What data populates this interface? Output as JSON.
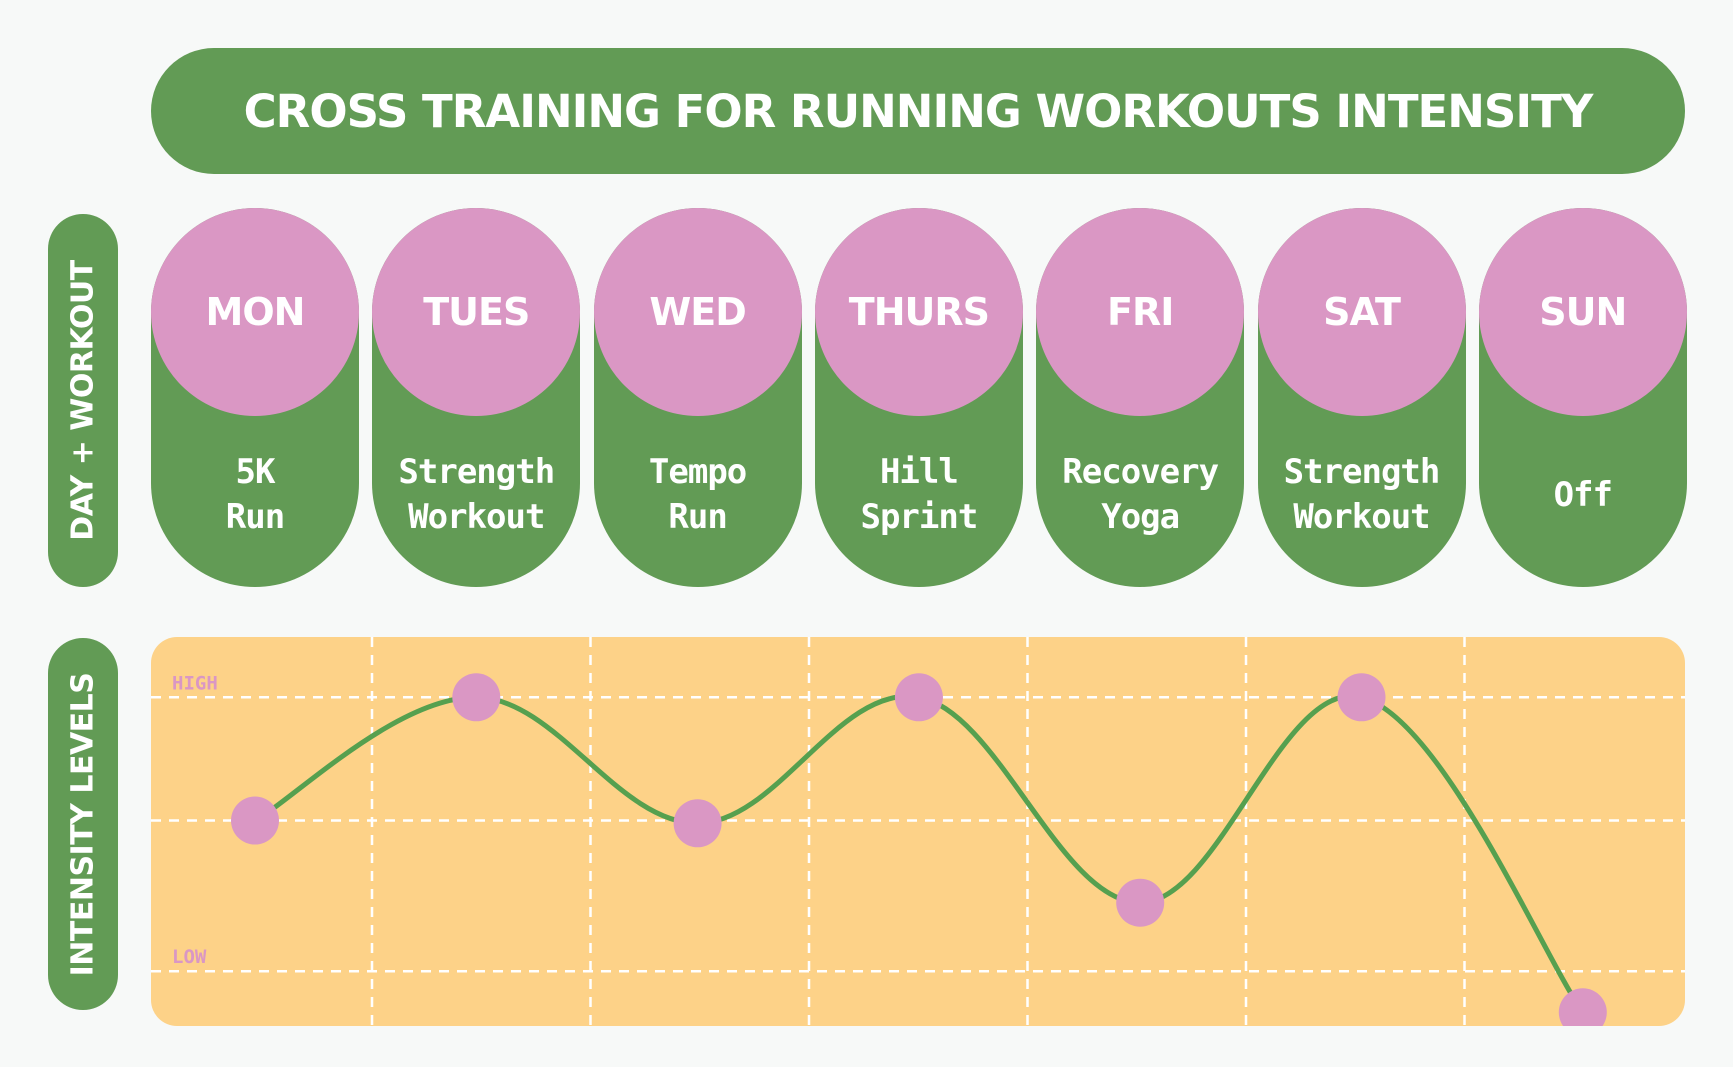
{
  "colors": {
    "green": "#629b55",
    "pink": "#da97c4",
    "panel": "#fdd288",
    "line": "#56a04f",
    "grid": "#ffffff"
  },
  "title": "CROSS TRAINING FOR RUNNING WORKOUTS INTENSITY",
  "side_labels": {
    "top": "DAY + WORKOUT",
    "bottom": "INTENSITY LEVELS"
  },
  "days": [
    {
      "day": "MON",
      "workout": [
        "5K",
        "Run"
      ]
    },
    {
      "day": "TUES",
      "workout": [
        "Strength",
        "Workout"
      ]
    },
    {
      "day": "WED",
      "workout": [
        "Tempo",
        "Run"
      ]
    },
    {
      "day": "THURS",
      "workout": [
        "Hill",
        "Sprint"
      ]
    },
    {
      "day": "FRI",
      "workout": [
        "Recovery",
        "Yoga"
      ]
    },
    {
      "day": "SAT",
      "workout": [
        "Strength",
        "Workout"
      ]
    },
    {
      "day": "SUN",
      "workout": [
        "Off"
      ]
    }
  ],
  "chart_data": {
    "type": "line",
    "categories": [
      "MON",
      "TUES",
      "WED",
      "THURS",
      "FRI",
      "SAT",
      "SUN"
    ],
    "series": [
      {
        "values": [
          0.55,
          1.0,
          0.54,
          1.0,
          0.25,
          1.0,
          -0.15
        ]
      }
    ],
    "y_tick_labels": {
      "high": "HIGH",
      "low": "LOW"
    },
    "y_ticks": {
      "high": 1.0,
      "mid": 0.55,
      "low": 0.0
    },
    "ylim": [
      -0.2,
      1.22
    ],
    "grid": true,
    "markers": true
  }
}
